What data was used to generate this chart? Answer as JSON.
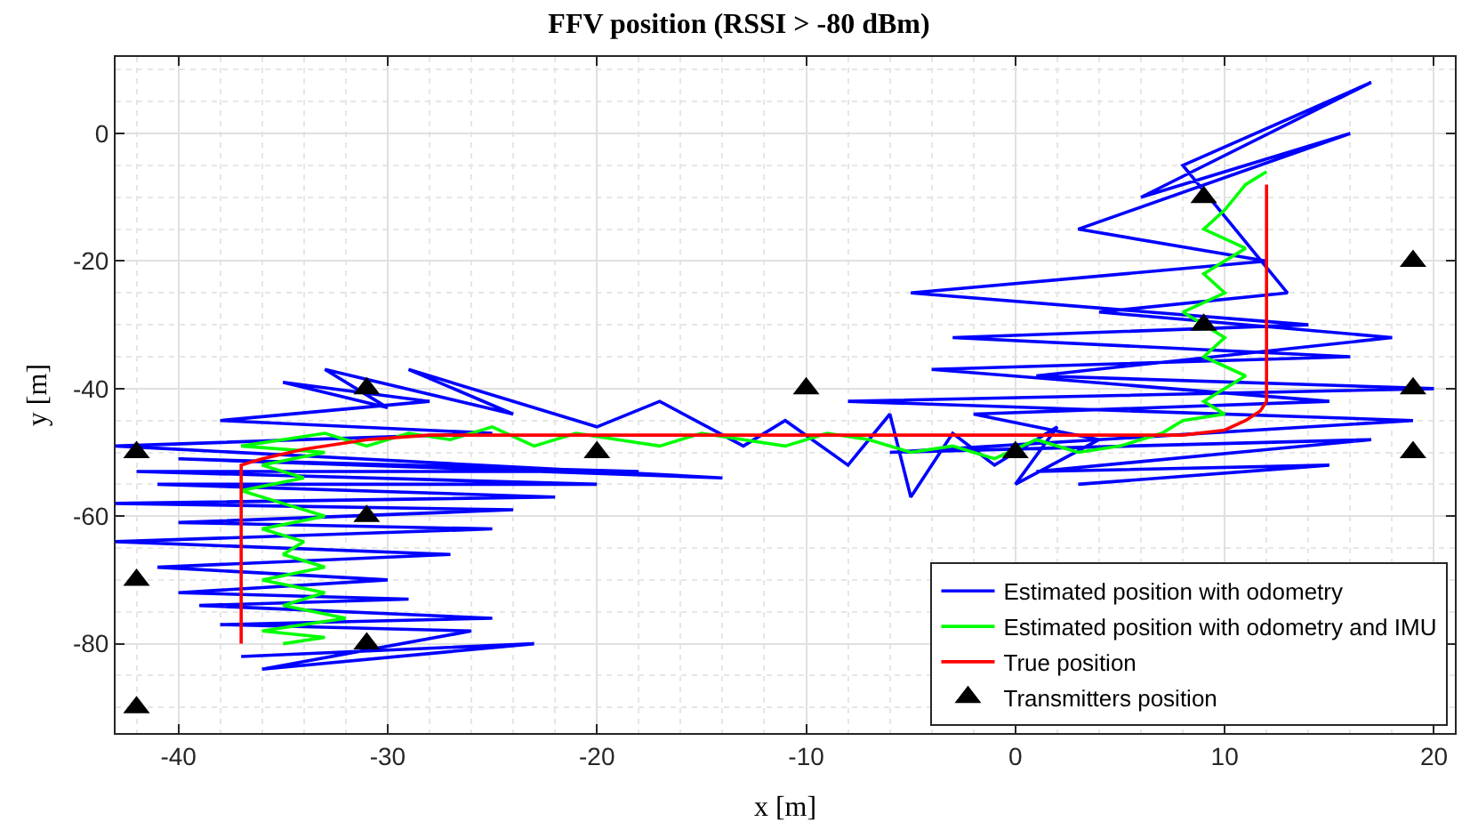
{
  "chart_data": {
    "type": "line",
    "title": "FFV position (RSSI > -80 dBm)",
    "xlabel": "x [m]",
    "ylabel": "y [m]",
    "xlim": [
      -43,
      21
    ],
    "ylim": [
      -94,
      12
    ],
    "xticks": [
      -40,
      -30,
      -20,
      -10,
      0,
      10,
      20
    ],
    "yticks": [
      -80,
      -60,
      -40,
      -20,
      0
    ],
    "grid": true,
    "legend": "bottom right",
    "series": [
      {
        "name": "Estimated position with odometry",
        "color": "#0000ff",
        "x": [
          -37,
          -23,
          -36,
          -26,
          -38,
          -25,
          -39,
          -29,
          -40,
          -30,
          -41,
          -27,
          -43,
          -25,
          -40,
          -24,
          -43,
          -22,
          -41,
          -20,
          -42,
          -18,
          -40,
          -14,
          -43,
          -25,
          -38,
          -28,
          -35,
          -30,
          -33,
          -24,
          -29,
          -20,
          -17,
          -13,
          -11,
          -8,
          -6,
          -5,
          -3,
          -1,
          2,
          0,
          4,
          -2,
          15,
          -4,
          16,
          -3,
          14,
          -5,
          12,
          3,
          16,
          6,
          17,
          8,
          13,
          4,
          18,
          1,
          20,
          -8,
          19,
          -6,
          17,
          1,
          15,
          3
        ],
        "values": [
          -82,
          -80,
          -84,
          -78,
          -77,
          -76,
          -74,
          -73,
          -72,
          -70,
          -68,
          -66,
          -64,
          -62,
          -61,
          -59,
          -58,
          -57,
          -55,
          -55,
          -53,
          -53,
          -51,
          -54,
          -49,
          -47,
          -45,
          -42,
          -39,
          -43,
          -37,
          -44,
          -37,
          -46,
          -42,
          -49,
          -45,
          -52,
          -44,
          -57,
          -47,
          -52,
          -46,
          -55,
          -48,
          -44,
          -42,
          -37,
          -35,
          -32,
          -30,
          -25,
          -20,
          -15,
          0,
          -10,
          8,
          -5,
          -25,
          -28,
          -32,
          -38,
          -40,
          -42,
          -45,
          -50,
          -48,
          -53,
          -52,
          -55
        ]
      },
      {
        "name": "Estimated position with odometry and IMU",
        "color": "#00ff00",
        "x": [
          -35,
          -33,
          -36,
          -32,
          -35,
          -33,
          -36,
          -33,
          -35,
          -34,
          -36,
          -33,
          -35,
          -37,
          -34,
          -36,
          -33,
          -37,
          -35,
          -33,
          -31,
          -29,
          -27,
          -25,
          -23,
          -21,
          -19,
          -17,
          -15,
          -13,
          -11,
          -9,
          -7,
          -5,
          -3,
          -1,
          1,
          3,
          5,
          7,
          8,
          10,
          9,
          11,
          9,
          10,
          8,
          10,
          9,
          11,
          9,
          10,
          11,
          12
        ],
        "values": [
          -80,
          -79,
          -78,
          -76,
          -74,
          -72,
          -70,
          -68,
          -66,
          -64,
          -62,
          -60,
          -58,
          -56,
          -54,
          -52,
          -50,
          -49,
          -48,
          -47,
          -49,
          -47,
          -48,
          -46,
          -49,
          -47,
          -48,
          -49,
          -47,
          -48,
          -49,
          -47,
          -48,
          -50,
          -49,
          -51,
          -48,
          -50,
          -49,
          -47,
          -45,
          -44,
          -42,
          -38,
          -35,
          -32,
          -28,
          -25,
          -22,
          -18,
          -15,
          -12,
          -8,
          -6
        ]
      },
      {
        "name": "True position",
        "color": "#ff0000",
        "x": [
          -37,
          -37,
          -36,
          -34,
          -31,
          -28,
          -20,
          0,
          8,
          10,
          11,
          11.7,
          12,
          12
        ],
        "values": [
          -80,
          -52,
          -51,
          -49.5,
          -48,
          -47.3,
          -47.3,
          -47.3,
          -47.3,
          -46.5,
          -45,
          -43.5,
          -42,
          -8
        ]
      },
      {
        "name": "Transmitters position",
        "color": "#000000",
        "type": "scatter",
        "marker": "triangle",
        "x": [
          -42,
          -42,
          -42,
          -31,
          -31,
          -31,
          -20,
          -10,
          0,
          9,
          9,
          19,
          19,
          19
        ],
        "values": [
          -50,
          -70,
          -90,
          -40,
          -60,
          -80,
          -50,
          -40,
          -50,
          -10,
          -30,
          -20,
          -40,
          -50
        ]
      }
    ]
  }
}
